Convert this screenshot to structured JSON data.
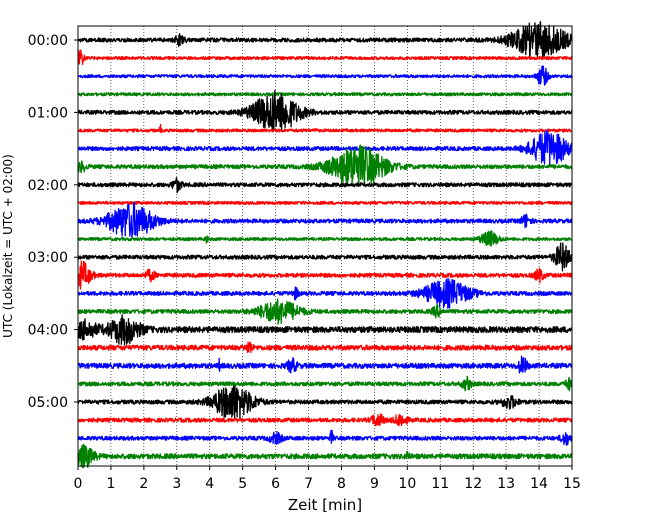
{
  "chart_data": {
    "type": "line",
    "title": "",
    "xlabel": "Zeit  [min]",
    "ylabel": "UTC (Lokalzeit = UTC + 02:00)",
    "xlim": [
      0,
      15
    ],
    "x_ticks": [
      0,
      1,
      2,
      3,
      4,
      5,
      6,
      7,
      8,
      9,
      10,
      11,
      12,
      13,
      14,
      15
    ],
    "x_tick_labels": [
      "0",
      "1",
      "2",
      "3",
      "4",
      "5",
      "6",
      "7",
      "8",
      "9",
      "10",
      "11",
      "12",
      "13",
      "14",
      "15"
    ],
    "y_ticks": [
      {
        "row": 0,
        "label": "00:00"
      },
      {
        "row": 4,
        "label": "01:00"
      },
      {
        "row": 8,
        "label": "02:00"
      },
      {
        "row": 12,
        "label": "03:00"
      },
      {
        "row": 16,
        "label": "04:00"
      },
      {
        "row": 20,
        "label": "05:00"
      }
    ],
    "grid": "vertical dotted at each minute",
    "trace_color_cycle": [
      "#000000",
      "#ff0000",
      "#0000ff",
      "#008000"
    ],
    "traces": [
      {
        "start": "00:00",
        "color": "#000000",
        "noise": 2,
        "events": [
          {
            "t": 3.1,
            "amp": 5,
            "dur": 0.3
          },
          {
            "t": 14.0,
            "amp": 17,
            "dur": 1.8
          }
        ]
      },
      {
        "start": "00:15",
        "color": "#ff0000",
        "noise": 1.5,
        "events": [
          {
            "t": 0.05,
            "amp": 10,
            "dur": 0.25
          }
        ]
      },
      {
        "start": "00:30",
        "color": "#0000ff",
        "noise": 1.5,
        "events": [
          {
            "t": 14.1,
            "amp": 10,
            "dur": 0.35
          }
        ]
      },
      {
        "start": "00:45",
        "color": "#008000",
        "noise": 1.5,
        "events": []
      },
      {
        "start": "01:00",
        "color": "#000000",
        "noise": 2,
        "events": [
          {
            "t": 6.0,
            "amp": 20,
            "dur": 1.5
          }
        ]
      },
      {
        "start": "01:15",
        "color": "#ff0000",
        "noise": 1.5,
        "events": [
          {
            "t": 2.5,
            "amp": 6,
            "dur": 0.05
          },
          {
            "t": 7.2,
            "amp": 5,
            "dur": 0.05
          }
        ]
      },
      {
        "start": "01:30",
        "color": "#0000ff",
        "noise": 2,
        "events": [
          {
            "t": 14.3,
            "amp": 17,
            "dur": 1.2
          }
        ]
      },
      {
        "start": "01:45",
        "color": "#008000",
        "noise": 2,
        "events": [
          {
            "t": 0.1,
            "amp": 5,
            "dur": 0.3
          },
          {
            "t": 8.5,
            "amp": 20,
            "dur": 1.8
          }
        ]
      },
      {
        "start": "02:00",
        "color": "#000000",
        "noise": 2,
        "events": [
          {
            "t": 3.0,
            "amp": 6,
            "dur": 0.3
          }
        ]
      },
      {
        "start": "02:15",
        "color": "#ff0000",
        "noise": 1.5,
        "events": []
      },
      {
        "start": "02:30",
        "color": "#0000ff",
        "noise": 2,
        "events": [
          {
            "t": 1.6,
            "amp": 17,
            "dur": 1.5
          },
          {
            "t": 13.6,
            "amp": 6,
            "dur": 0.3
          }
        ]
      },
      {
        "start": "02:45",
        "color": "#008000",
        "noise": 1.5,
        "events": [
          {
            "t": 3.9,
            "amp": 4,
            "dur": 0.1
          },
          {
            "t": 12.5,
            "amp": 7,
            "dur": 0.6
          }
        ]
      },
      {
        "start": "03:00",
        "color": "#000000",
        "noise": 2,
        "events": [
          {
            "t": 14.7,
            "amp": 13,
            "dur": 0.5
          }
        ]
      },
      {
        "start": "03:15",
        "color": "#ff0000",
        "noise": 2,
        "events": [
          {
            "t": 0.1,
            "amp": 13,
            "dur": 0.6
          },
          {
            "t": 2.2,
            "amp": 5,
            "dur": 0.3
          },
          {
            "t": 14.0,
            "amp": 6,
            "dur": 0.3
          }
        ]
      },
      {
        "start": "03:30",
        "color": "#0000ff",
        "noise": 2,
        "events": [
          {
            "t": 6.6,
            "amp": 5,
            "dur": 0.2
          },
          {
            "t": 11.2,
            "amp": 13,
            "dur": 1.5
          }
        ]
      },
      {
        "start": "03:45",
        "color": "#008000",
        "noise": 2,
        "events": [
          {
            "t": 6.1,
            "amp": 11,
            "dur": 1.3
          },
          {
            "t": 10.9,
            "amp": 5,
            "dur": 0.3
          }
        ]
      },
      {
        "start": "04:00",
        "color": "#000000",
        "noise": 3,
        "events": [
          {
            "t": 0.2,
            "amp": 8,
            "dur": 0.8
          },
          {
            "t": 1.4,
            "amp": 13,
            "dur": 1.0
          }
        ]
      },
      {
        "start": "04:15",
        "color": "#ff0000",
        "noise": 2.5,
        "events": [
          {
            "t": 5.2,
            "amp": 6,
            "dur": 0.2
          }
        ]
      },
      {
        "start": "04:30",
        "color": "#0000ff",
        "noise": 2.5,
        "events": [
          {
            "t": 4.3,
            "amp": 8,
            "dur": 0.05
          },
          {
            "t": 6.5,
            "amp": 6,
            "dur": 0.3
          },
          {
            "t": 13.5,
            "amp": 8,
            "dur": 0.3
          }
        ]
      },
      {
        "start": "04:45",
        "color": "#008000",
        "noise": 2,
        "events": [
          {
            "t": 11.8,
            "amp": 6,
            "dur": 0.3
          },
          {
            "t": 14.9,
            "amp": 6,
            "dur": 0.2
          }
        ]
      },
      {
        "start": "05:00",
        "color": "#000000",
        "noise": 2,
        "events": [
          {
            "t": 4.7,
            "amp": 17,
            "dur": 1.3
          },
          {
            "t": 13.1,
            "amp": 6,
            "dur": 0.5
          }
        ]
      },
      {
        "start": "05:15",
        "color": "#ff0000",
        "noise": 2,
        "events": [
          {
            "t": 9.1,
            "amp": 6,
            "dur": 0.4
          },
          {
            "t": 9.8,
            "amp": 6,
            "dur": 0.4
          }
        ]
      },
      {
        "start": "05:30",
        "color": "#0000ff",
        "noise": 2,
        "events": [
          {
            "t": 6.0,
            "amp": 5,
            "dur": 0.4
          },
          {
            "t": 7.7,
            "amp": 7,
            "dur": 0.1
          },
          {
            "t": 14.8,
            "amp": 6,
            "dur": 0.3
          }
        ]
      },
      {
        "start": "05:45",
        "color": "#008000",
        "noise": 2.5,
        "events": [
          {
            "t": 0.2,
            "amp": 10,
            "dur": 0.6
          },
          {
            "t": 10.0,
            "amp": 6,
            "dur": 0.1
          }
        ]
      }
    ]
  }
}
